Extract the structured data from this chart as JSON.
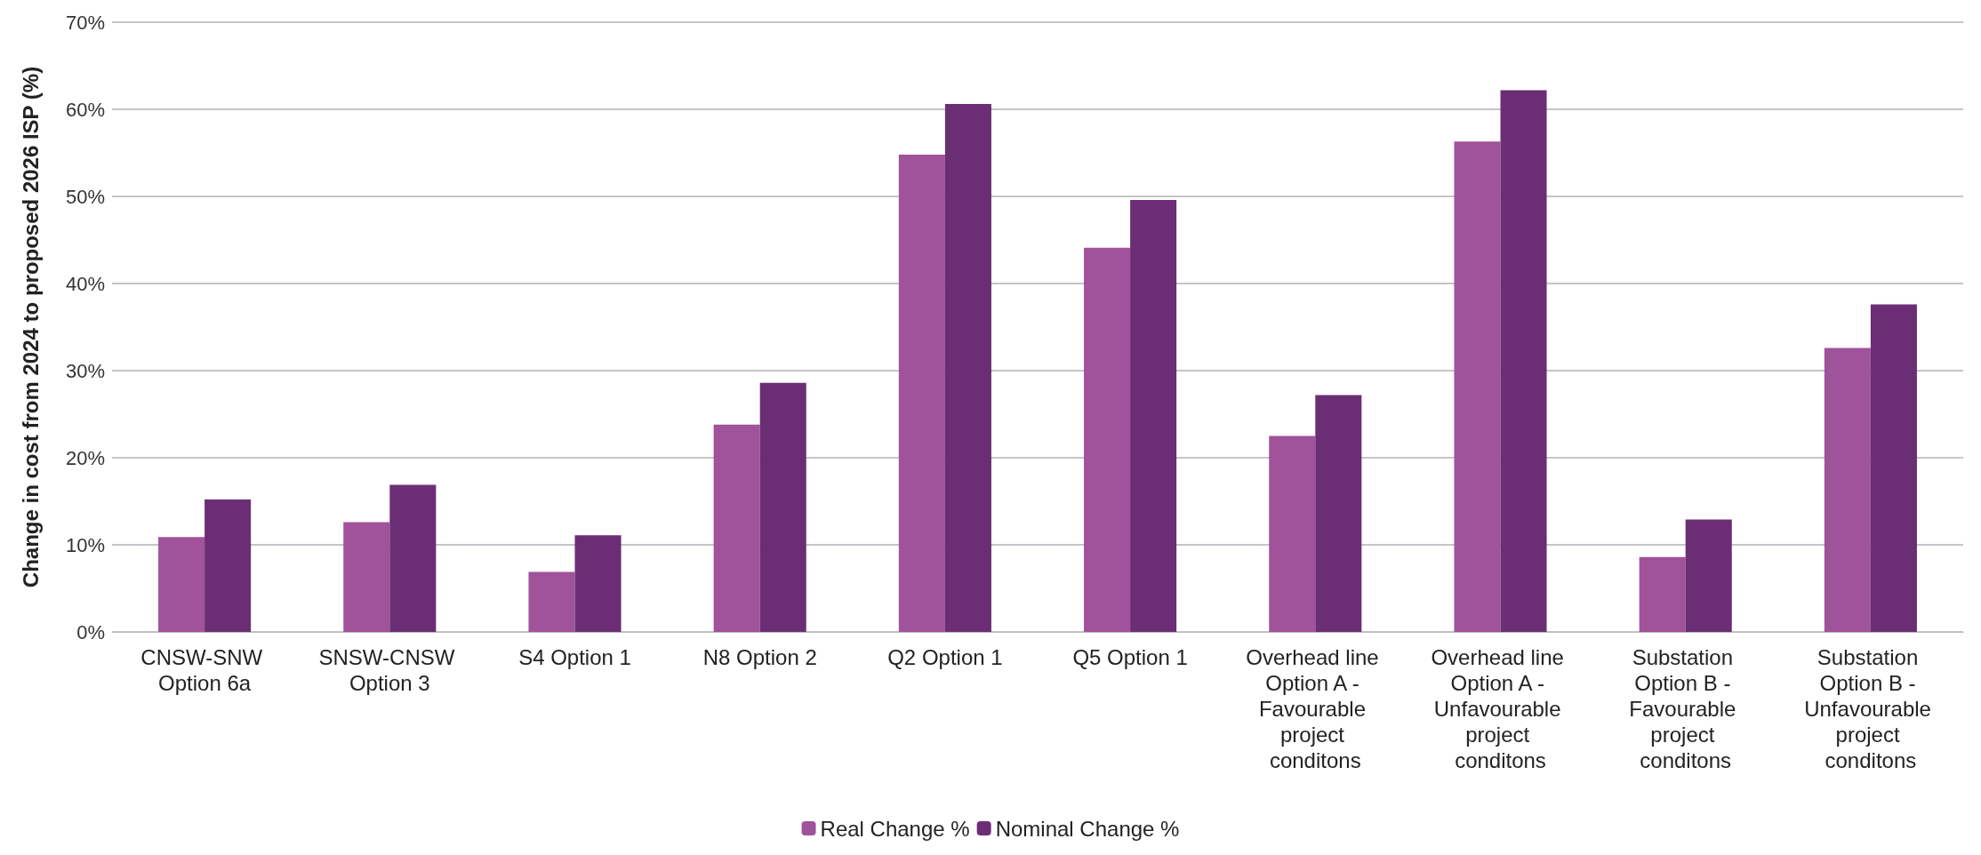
{
  "chart_data": {
    "type": "bar",
    "ylabel": "Change in cost from 2024 to proposed 2026 ISP (%)",
    "categories": [
      "CNSW-SNW Option 6a",
      "SNSW-CNSW Option 3",
      "S4 Option 1",
      "N8 Option 2",
      "Q2 Option 1",
      "Q5 Option 1",
      "Overhead line Option A - Favourable project conditons",
      "Overhead line Option A - Unfavourable project conditons",
      "Substation Option B - Favourable project conditons",
      "Substation Option B - Unfavourable project conditons"
    ],
    "series": [
      {
        "name": "Real Change %",
        "color": "#a0529a",
        "values": [
          10.9,
          12.6,
          6.9,
          23.8,
          54.8,
          44.1,
          22.5,
          56.3,
          8.6,
          32.6
        ]
      },
      {
        "name": "Nominal Change %",
        "color": "#6b2e74",
        "values": [
          15.2,
          16.9,
          11.1,
          28.6,
          60.6,
          49.6,
          27.2,
          62.2,
          12.9,
          37.6
        ]
      }
    ],
    "ylim": [
      0,
      70
    ],
    "yticks": [
      {
        "value": 0,
        "label": "0%"
      },
      {
        "value": 10,
        "label": "10%"
      },
      {
        "value": 20,
        "label": "20%"
      },
      {
        "value": 30,
        "label": "30%"
      },
      {
        "value": 40,
        "label": "40%"
      },
      {
        "value": 50,
        "label": "50%"
      },
      {
        "value": 60,
        "label": "60%"
      },
      {
        "value": 70,
        "label": "70%"
      }
    ],
    "grid": "y",
    "legend": "bottom"
  }
}
